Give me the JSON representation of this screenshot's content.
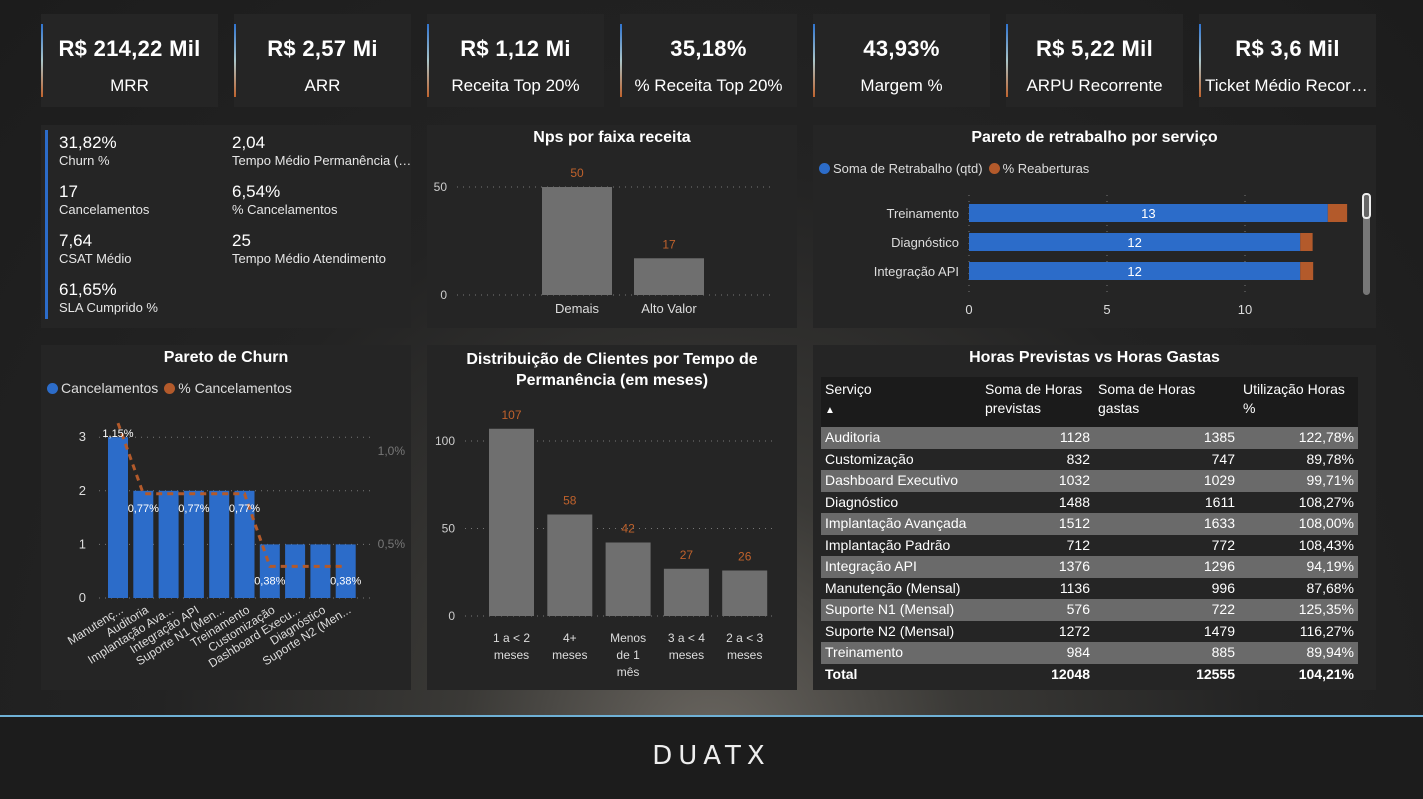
{
  "kpis": [
    {
      "value": "R$ 214,22 Mil",
      "label": "MRR"
    },
    {
      "value": "R$ 2,57 Mi",
      "label": "ARR"
    },
    {
      "value": "R$ 1,12 Mi",
      "label": "Receita Top 20%"
    },
    {
      "value": "35,18%",
      "label": "% Receita Top 20%"
    },
    {
      "value": "43,93%",
      "label": "Margem %"
    },
    {
      "value": "R$ 5,22 Mil",
      "label": "ARPU Recorrente"
    },
    {
      "value": "R$ 3,6 Mil",
      "label": "Ticket Médio Recorrente"
    }
  ],
  "stats": [
    {
      "value": "31,82%",
      "label": "Churn %"
    },
    {
      "value": "2,04",
      "label": "Tempo Médio Permanência (meses)"
    },
    {
      "value": "17",
      "label": "Cancelamentos"
    },
    {
      "value": "6,54%",
      "label": "% Cancelamentos"
    },
    {
      "value": "7,64",
      "label": "CSAT Médio"
    },
    {
      "value": "25",
      "label": "Tempo Médio Atendimento"
    },
    {
      "value": "61,65%",
      "label": "SLA Cumprido %"
    }
  ],
  "colors": {
    "blue": "#2c6cc9",
    "orange": "#b35a2b",
    "gray_bar": "#6f6f6f",
    "label_orange": "#c0622c"
  },
  "chart_data": [
    {
      "id": "nps",
      "type": "bar",
      "title": "Nps por faixa receita",
      "categories": [
        "Demais",
        "Alto Valor"
      ],
      "values": [
        50,
        17
      ],
      "yticks": [
        0,
        50
      ],
      "ylim": [
        0,
        50
      ],
      "grid": true
    },
    {
      "id": "retrabalho",
      "type": "bar",
      "orientation": "horizontal",
      "stacked": true,
      "title": "Pareto de retrabalho por serviço",
      "categories": [
        "Treinamento",
        "Diagnóstico",
        "Integração API"
      ],
      "series": [
        {
          "name": "Soma de Retrabalho (qtd)",
          "values": [
            13,
            12,
            12
          ],
          "color": "#2c6cc9"
        },
        {
          "name": "% Reaberturas",
          "values": [
            0.7,
            0.45,
            0.47
          ],
          "color": "#b35a2b"
        }
      ],
      "xticks": [
        0,
        5,
        10
      ],
      "xlim": [
        0,
        13.7
      ],
      "legend": "top-left"
    },
    {
      "id": "churn",
      "type": "bar",
      "title": "Pareto de Churn",
      "categories": [
        "Manutenç...",
        "Auditoria",
        "Implantação Ava...",
        "Integração API",
        "Suporte N1 (Men...",
        "Treinamento",
        "Customização",
        "Dashboard Execu...",
        "Diagnóstico",
        "Suporte N2 (Men..."
      ],
      "series": [
        {
          "name": "Cancelamentos",
          "type": "bar",
          "values": [
            3,
            2,
            2,
            2,
            2,
            2,
            1,
            1,
            1,
            1
          ],
          "color": "#2c6cc9"
        },
        {
          "name": "% Cancelamentos",
          "type": "line",
          "axis": "secondary",
          "values": [
            1.15,
            0.77,
            0.77,
            0.77,
            0.77,
            0.77,
            0.38,
            0.38,
            0.38,
            0.38
          ],
          "color": "#b35a2b"
        }
      ],
      "data_labels": [
        {
          "index": 0,
          "text": "1,15%"
        },
        {
          "index": 1,
          "text": "0,77%"
        },
        {
          "index": 3,
          "text": "0,77%"
        },
        {
          "index": 5,
          "text": "0,77%"
        },
        {
          "index": 6,
          "text": "0,38%"
        },
        {
          "index": 9,
          "text": "0,38%"
        }
      ],
      "yticks": [
        0,
        1,
        2,
        3
      ],
      "y2ticks": [
        "0,5%",
        "1,0%"
      ],
      "y2values": [
        0.5,
        1.0
      ],
      "legend": "top-left"
    },
    {
      "id": "dist",
      "type": "bar",
      "title": "Distribuição de Clientes por Tempo de Permanência (em meses)",
      "categories": [
        [
          "1 a < 2",
          "meses"
        ],
        [
          "4+",
          "meses"
        ],
        [
          "Menos",
          "de 1",
          "mês"
        ],
        [
          "3 a < 4",
          "meses"
        ],
        [
          "2 a < 3",
          "meses"
        ]
      ],
      "values": [
        107,
        58,
        42,
        27,
        26
      ],
      "yticks": [
        0,
        50,
        100
      ],
      "grid": true
    }
  ],
  "table": {
    "title": "Horas Previstas vs Horas Gastas",
    "columns": [
      "Serviço",
      "Soma de Horas previstas",
      "Soma de Horas gastas",
      "Utilização Horas %"
    ],
    "sort_indicator": "▲",
    "rows": [
      [
        "Auditoria",
        "1128",
        "1385",
        "122,78%"
      ],
      [
        "Customização",
        "832",
        "747",
        "89,78%"
      ],
      [
        "Dashboard Executivo",
        "1032",
        "1029",
        "99,71%"
      ],
      [
        "Diagnóstico",
        "1488",
        "1611",
        "108,27%"
      ],
      [
        "Implantação Avançada",
        "1512",
        "1633",
        "108,00%"
      ],
      [
        "Implantação Padrão",
        "712",
        "772",
        "108,43%"
      ],
      [
        "Integração API",
        "1376",
        "1296",
        "94,19%"
      ],
      [
        "Manutenção (Mensal)",
        "1136",
        "996",
        "87,68%"
      ],
      [
        "Suporte N1 (Mensal)",
        "576",
        "722",
        "125,35%"
      ],
      [
        "Suporte N2 (Mensal)",
        "1272",
        "1479",
        "116,27%"
      ],
      [
        "Treinamento",
        "984",
        "885",
        "89,94%"
      ]
    ],
    "total": [
      "Total",
      "12048",
      "12555",
      "104,21%"
    ]
  },
  "footer": {
    "logo": "DUATX"
  }
}
